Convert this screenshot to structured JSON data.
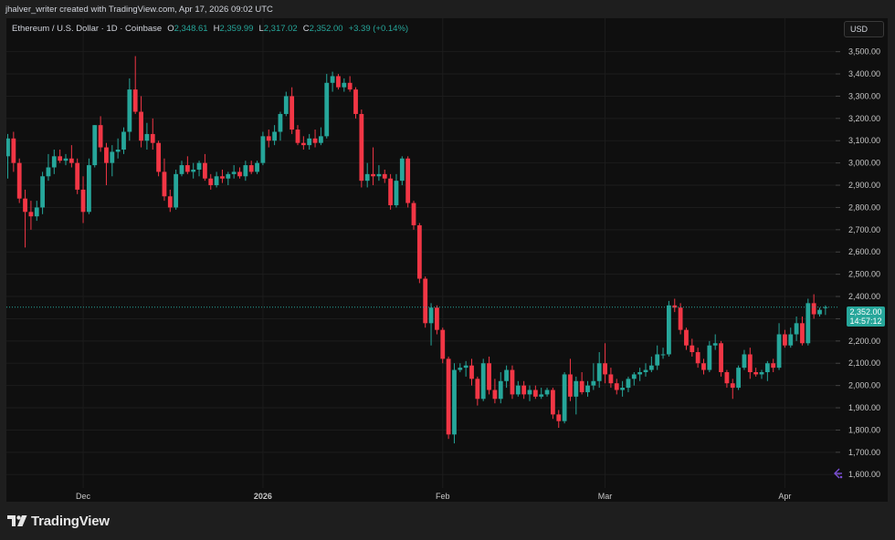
{
  "header": {
    "attribution": "jhalver_writer created with TradingView.com, Apr 17, 2026 09:02 UTC"
  },
  "legend": {
    "symbol": "Ethereum / U.S. Dollar · 1D · Coinbase",
    "open_label": "O",
    "open": "2,348.61",
    "high_label": "H",
    "high": "2,359.99",
    "low_label": "L",
    "low": "2,317.02",
    "close_label": "C",
    "close": "2,352.00",
    "change": "+3.39 (+0.14%)"
  },
  "currency_button": "USD",
  "price_tag": {
    "price": "2,352.00",
    "countdown": "14:57:12"
  },
  "branding": {
    "logo_text": "TradingView",
    "logo_icon": "tradingview-logo-icon"
  },
  "icons": {
    "undo": "undo-arrow-icon"
  },
  "colors": {
    "up": "#26a69a",
    "down": "#f23645",
    "background": "#0f0f0f",
    "grid": "#1c1c1c",
    "current_price_line": "#26a69a",
    "undo_icon": "#7b4fd6"
  },
  "chart_data": {
    "type": "candlestick",
    "title": "Ethereum / U.S. Dollar · 1D · Coinbase",
    "ylim": [
      1560,
      3560
    ],
    "y_ticks": [
      1600,
      1700,
      1800,
      1900,
      2000,
      2100,
      2200,
      2300,
      2400,
      2500,
      2600,
      2700,
      2800,
      2900,
      3000,
      3100,
      3200,
      3300,
      3400,
      3500
    ],
    "y_tick_labels": [
      "1,600.00",
      "1,700.00",
      "1,800.00",
      "1,900.00",
      "2,000.00",
      "2,100.00",
      "2,200.00",
      "2,300.00",
      "2,400.00",
      "2,500.00",
      "2,600.00",
      "2,700.00",
      "2,800.00",
      "2,900.00",
      "3,000.00",
      "3,100.00",
      "3,200.00",
      "3,300.00",
      "3,400.00",
      "3,500.00"
    ],
    "x_tick_labels": [
      {
        "label": "Dec",
        "index": 13,
        "bold": false
      },
      {
        "label": "2026",
        "index": 44,
        "bold": true
      },
      {
        "label": "Feb",
        "index": 75,
        "bold": false
      },
      {
        "label": "Mar",
        "index": 103,
        "bold": false
      },
      {
        "label": "Apr",
        "index": 134,
        "bold": false
      }
    ],
    "current_price": 2352.0,
    "grid": true,
    "candles": [
      {
        "o": 3030,
        "h": 3130,
        "l": 2930,
        "c": 3110
      },
      {
        "o": 3110,
        "h": 3140,
        "l": 2960,
        "c": 3000
      },
      {
        "o": 3000,
        "h": 3020,
        "l": 2820,
        "c": 2840
      },
      {
        "o": 2840,
        "h": 2880,
        "l": 2620,
        "c": 2780
      },
      {
        "o": 2780,
        "h": 2830,
        "l": 2700,
        "c": 2760
      },
      {
        "o": 2760,
        "h": 2830,
        "l": 2740,
        "c": 2800
      },
      {
        "o": 2800,
        "h": 2960,
        "l": 2770,
        "c": 2940
      },
      {
        "o": 2940,
        "h": 3040,
        "l": 2920,
        "c": 2980
      },
      {
        "o": 2980,
        "h": 3060,
        "l": 2950,
        "c": 3030
      },
      {
        "o": 3030,
        "h": 3060,
        "l": 3000,
        "c": 3010
      },
      {
        "o": 3010,
        "h": 3040,
        "l": 2990,
        "c": 3020
      },
      {
        "o": 3020,
        "h": 3080,
        "l": 2980,
        "c": 3000
      },
      {
        "o": 3000,
        "h": 3020,
        "l": 2860,
        "c": 2880
      },
      {
        "o": 2880,
        "h": 2940,
        "l": 2730,
        "c": 2780
      },
      {
        "o": 2780,
        "h": 3020,
        "l": 2770,
        "c": 2990
      },
      {
        "o": 2990,
        "h": 3170,
        "l": 2980,
        "c": 3170
      },
      {
        "o": 3170,
        "h": 3210,
        "l": 3050,
        "c": 3070
      },
      {
        "o": 3070,
        "h": 3090,
        "l": 2900,
        "c": 3000
      },
      {
        "o": 3000,
        "h": 3080,
        "l": 2940,
        "c": 3050
      },
      {
        "o": 3050,
        "h": 3110,
        "l": 3020,
        "c": 3060
      },
      {
        "o": 3060,
        "h": 3160,
        "l": 3040,
        "c": 3140
      },
      {
        "o": 3140,
        "h": 3380,
        "l": 3100,
        "c": 3330
      },
      {
        "o": 3330,
        "h": 3480,
        "l": 3220,
        "c": 3230
      },
      {
        "o": 3230,
        "h": 3300,
        "l": 3070,
        "c": 3100
      },
      {
        "o": 3100,
        "h": 3180,
        "l": 3060,
        "c": 3130
      },
      {
        "o": 3130,
        "h": 3200,
        "l": 3060,
        "c": 3090
      },
      {
        "o": 3090,
        "h": 3100,
        "l": 2940,
        "c": 2960
      },
      {
        "o": 2960,
        "h": 3020,
        "l": 2830,
        "c": 2850
      },
      {
        "o": 2850,
        "h": 2880,
        "l": 2780,
        "c": 2800
      },
      {
        "o": 2800,
        "h": 2970,
        "l": 2790,
        "c": 2950
      },
      {
        "o": 2950,
        "h": 3010,
        "l": 2940,
        "c": 2990
      },
      {
        "o": 2990,
        "h": 3030,
        "l": 2950,
        "c": 2960
      },
      {
        "o": 2960,
        "h": 3000,
        "l": 2930,
        "c": 2970
      },
      {
        "o": 2970,
        "h": 3010,
        "l": 2940,
        "c": 3000
      },
      {
        "o": 3000,
        "h": 3040,
        "l": 2920,
        "c": 2930
      },
      {
        "o": 2930,
        "h": 2950,
        "l": 2880,
        "c": 2900
      },
      {
        "o": 2900,
        "h": 2960,
        "l": 2890,
        "c": 2940
      },
      {
        "o": 2940,
        "h": 2970,
        "l": 2910,
        "c": 2930
      },
      {
        "o": 2930,
        "h": 2960,
        "l": 2900,
        "c": 2950
      },
      {
        "o": 2950,
        "h": 2990,
        "l": 2930,
        "c": 2960
      },
      {
        "o": 2960,
        "h": 2980,
        "l": 2930,
        "c": 2940
      },
      {
        "o": 2940,
        "h": 3010,
        "l": 2920,
        "c": 2990
      },
      {
        "o": 2990,
        "h": 3010,
        "l": 2950,
        "c": 2960
      },
      {
        "o": 2960,
        "h": 3010,
        "l": 2950,
        "c": 3000
      },
      {
        "o": 3000,
        "h": 3140,
        "l": 2990,
        "c": 3120
      },
      {
        "o": 3120,
        "h": 3150,
        "l": 3070,
        "c": 3100
      },
      {
        "o": 3100,
        "h": 3170,
        "l": 3080,
        "c": 3140
      },
      {
        "o": 3140,
        "h": 3230,
        "l": 3100,
        "c": 3220
      },
      {
        "o": 3220,
        "h": 3320,
        "l": 3210,
        "c": 3300
      },
      {
        "o": 3300,
        "h": 3340,
        "l": 3130,
        "c": 3150
      },
      {
        "o": 3150,
        "h": 3170,
        "l": 3080,
        "c": 3090
      },
      {
        "o": 3090,
        "h": 3120,
        "l": 3060,
        "c": 3080
      },
      {
        "o": 3080,
        "h": 3130,
        "l": 3060,
        "c": 3110
      },
      {
        "o": 3110,
        "h": 3150,
        "l": 3070,
        "c": 3090
      },
      {
        "o": 3090,
        "h": 3160,
        "l": 3080,
        "c": 3120
      },
      {
        "o": 3120,
        "h": 3400,
        "l": 3110,
        "c": 3360
      },
      {
        "o": 3360,
        "h": 3410,
        "l": 3320,
        "c": 3390
      },
      {
        "o": 3390,
        "h": 3400,
        "l": 3330,
        "c": 3340
      },
      {
        "o": 3340,
        "h": 3380,
        "l": 3320,
        "c": 3360
      },
      {
        "o": 3360,
        "h": 3390,
        "l": 3320,
        "c": 3330
      },
      {
        "o": 3330,
        "h": 3340,
        "l": 3200,
        "c": 3220
      },
      {
        "o": 3220,
        "h": 3240,
        "l": 2890,
        "c": 2920
      },
      {
        "o": 2920,
        "h": 3000,
        "l": 2890,
        "c": 2950
      },
      {
        "o": 2950,
        "h": 3070,
        "l": 2900,
        "c": 2940
      },
      {
        "o": 2940,
        "h": 2990,
        "l": 2920,
        "c": 2950
      },
      {
        "o": 2950,
        "h": 2970,
        "l": 2910,
        "c": 2930
      },
      {
        "o": 2930,
        "h": 2950,
        "l": 2790,
        "c": 2810
      },
      {
        "o": 2810,
        "h": 2950,
        "l": 2800,
        "c": 2920
      },
      {
        "o": 2920,
        "h": 3030,
        "l": 2900,
        "c": 3020
      },
      {
        "o": 3020,
        "h": 3030,
        "l": 2800,
        "c": 2820
      },
      {
        "o": 2820,
        "h": 2830,
        "l": 2700,
        "c": 2720
      },
      {
        "o": 2720,
        "h": 2730,
        "l": 2460,
        "c": 2480
      },
      {
        "o": 2480,
        "h": 2490,
        "l": 2260,
        "c": 2280
      },
      {
        "o": 2280,
        "h": 2370,
        "l": 2180,
        "c": 2350
      },
      {
        "o": 2350,
        "h": 2360,
        "l": 2230,
        "c": 2250
      },
      {
        "o": 2250,
        "h": 2260,
        "l": 2100,
        "c": 2120
      },
      {
        "o": 2120,
        "h": 2130,
        "l": 1760,
        "c": 1780
      },
      {
        "o": 1780,
        "h": 2100,
        "l": 1740,
        "c": 2070
      },
      {
        "o": 2070,
        "h": 2100,
        "l": 2060,
        "c": 2080
      },
      {
        "o": 2080,
        "h": 2110,
        "l": 2040,
        "c": 2090
      },
      {
        "o": 2090,
        "h": 2120,
        "l": 2000,
        "c": 2030
      },
      {
        "o": 2030,
        "h": 2040,
        "l": 1910,
        "c": 1940
      },
      {
        "o": 1940,
        "h": 2120,
        "l": 1930,
        "c": 2100
      },
      {
        "o": 2100,
        "h": 2130,
        "l": 1960,
        "c": 1980
      },
      {
        "o": 1980,
        "h": 2030,
        "l": 1920,
        "c": 1940
      },
      {
        "o": 1940,
        "h": 2060,
        "l": 1920,
        "c": 2020
      },
      {
        "o": 2020,
        "h": 2090,
        "l": 1990,
        "c": 2070
      },
      {
        "o": 2070,
        "h": 2090,
        "l": 1940,
        "c": 1960
      },
      {
        "o": 1960,
        "h": 2020,
        "l": 1950,
        "c": 2000
      },
      {
        "o": 2000,
        "h": 2020,
        "l": 1940,
        "c": 1960
      },
      {
        "o": 1960,
        "h": 2000,
        "l": 1930,
        "c": 1980
      },
      {
        "o": 1980,
        "h": 2000,
        "l": 1940,
        "c": 1950
      },
      {
        "o": 1950,
        "h": 1990,
        "l": 1940,
        "c": 1960
      },
      {
        "o": 1960,
        "h": 1990,
        "l": 1950,
        "c": 1980
      },
      {
        "o": 1980,
        "h": 1990,
        "l": 1850,
        "c": 1870
      },
      {
        "o": 1870,
        "h": 1890,
        "l": 1810,
        "c": 1840
      },
      {
        "o": 1840,
        "h": 2060,
        "l": 1830,
        "c": 2050
      },
      {
        "o": 2050,
        "h": 2120,
        "l": 1930,
        "c": 1950
      },
      {
        "o": 1950,
        "h": 2040,
        "l": 1870,
        "c": 2020
      },
      {
        "o": 2020,
        "h": 2060,
        "l": 1960,
        "c": 1970
      },
      {
        "o": 1970,
        "h": 2020,
        "l": 1950,
        "c": 2000
      },
      {
        "o": 2000,
        "h": 2100,
        "l": 1980,
        "c": 2020
      },
      {
        "o": 2020,
        "h": 2150,
        "l": 1990,
        "c": 2100
      },
      {
        "o": 2100,
        "h": 2190,
        "l": 2010,
        "c": 2050
      },
      {
        "o": 2050,
        "h": 2080,
        "l": 1990,
        "c": 2010
      },
      {
        "o": 2010,
        "h": 2030,
        "l": 1960,
        "c": 1980
      },
      {
        "o": 1980,
        "h": 2020,
        "l": 1950,
        "c": 1990
      },
      {
        "o": 1990,
        "h": 2040,
        "l": 1970,
        "c": 2030
      },
      {
        "o": 2030,
        "h": 2060,
        "l": 2000,
        "c": 2050
      },
      {
        "o": 2050,
        "h": 2080,
        "l": 2020,
        "c": 2060
      },
      {
        "o": 2060,
        "h": 2100,
        "l": 2040,
        "c": 2070
      },
      {
        "o": 2070,
        "h": 2130,
        "l": 2060,
        "c": 2090
      },
      {
        "o": 2090,
        "h": 2180,
        "l": 2070,
        "c": 2140
      },
      {
        "o": 2140,
        "h": 2170,
        "l": 2120,
        "c": 2140
      },
      {
        "o": 2140,
        "h": 2380,
        "l": 2130,
        "c": 2360
      },
      {
        "o": 2360,
        "h": 2390,
        "l": 2330,
        "c": 2350
      },
      {
        "o": 2350,
        "h": 2370,
        "l": 2230,
        "c": 2250
      },
      {
        "o": 2250,
        "h": 2260,
        "l": 2160,
        "c": 2180
      },
      {
        "o": 2180,
        "h": 2210,
        "l": 2130,
        "c": 2150
      },
      {
        "o": 2150,
        "h": 2170,
        "l": 2080,
        "c": 2100
      },
      {
        "o": 2100,
        "h": 2120,
        "l": 2050,
        "c": 2070
      },
      {
        "o": 2070,
        "h": 2200,
        "l": 2060,
        "c": 2180
      },
      {
        "o": 2180,
        "h": 2230,
        "l": 2160,
        "c": 2190
      },
      {
        "o": 2190,
        "h": 2200,
        "l": 2040,
        "c": 2060
      },
      {
        "o": 2060,
        "h": 2070,
        "l": 1990,
        "c": 2010
      },
      {
        "o": 2010,
        "h": 2030,
        "l": 1940,
        "c": 1990
      },
      {
        "o": 1990,
        "h": 2090,
        "l": 1980,
        "c": 2080
      },
      {
        "o": 2080,
        "h": 2160,
        "l": 2070,
        "c": 2140
      },
      {
        "o": 2140,
        "h": 2170,
        "l": 2030,
        "c": 2060
      },
      {
        "o": 2060,
        "h": 2080,
        "l": 2040,
        "c": 2050
      },
      {
        "o": 2050,
        "h": 2070,
        "l": 2030,
        "c": 2060
      },
      {
        "o": 2060,
        "h": 2110,
        "l": 2020,
        "c": 2100
      },
      {
        "o": 2100,
        "h": 2120,
        "l": 2060,
        "c": 2080
      },
      {
        "o": 2080,
        "h": 2280,
        "l": 2070,
        "c": 2230
      },
      {
        "o": 2230,
        "h": 2250,
        "l": 2170,
        "c": 2180
      },
      {
        "o": 2180,
        "h": 2260,
        "l": 2170,
        "c": 2230
      },
      {
        "o": 2230,
        "h": 2310,
        "l": 2200,
        "c": 2280
      },
      {
        "o": 2280,
        "h": 2310,
        "l": 2180,
        "c": 2190
      },
      {
        "o": 2190,
        "h": 2390,
        "l": 2180,
        "c": 2370
      },
      {
        "o": 2370,
        "h": 2410,
        "l": 2300,
        "c": 2320
      },
      {
        "o": 2320,
        "h": 2350,
        "l": 2310,
        "c": 2340
      },
      {
        "o": 2348.61,
        "h": 2359.99,
        "l": 2317.02,
        "c": 2352.0
      }
    ]
  }
}
